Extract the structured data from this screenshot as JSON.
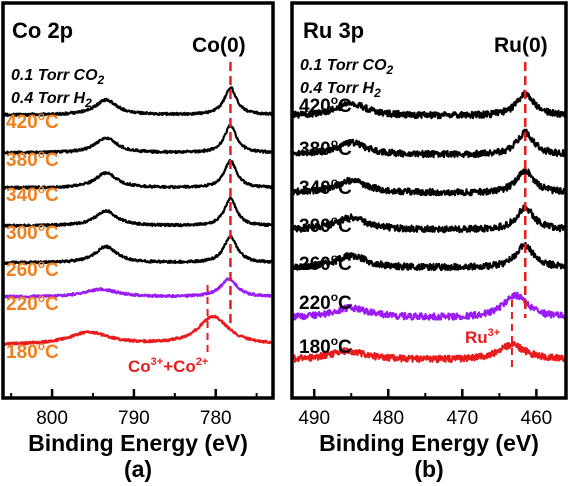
{
  "colors": {
    "frame": "#000000",
    "temp_label": "#f07f1e",
    "co0_line": "#e81c1c",
    "trace_black": "#000000",
    "trace_purple": "#9b1cf2",
    "trace_red": "#e81c1c"
  },
  "chart_data": [
    {
      "type": "line",
      "panel_label": "(a)",
      "title": "Co 2p",
      "xlabel": "Binding Energy (eV)",
      "ylabel": "",
      "xlim": [
        806,
        773
      ],
      "x_reversed": true,
      "xticks": [
        800,
        790,
        780
      ],
      "gas_conditions": [
        "0.1 Torr CO",
        "0.4 Torr H"
      ],
      "gas_subscripts": [
        "2",
        "2"
      ],
      "reference_line": {
        "label": "Co(0)",
        "x": 778.2
      },
      "secondary_line": {
        "label": "Co3+ + Co2+",
        "label_main": "Co",
        "sup1": "3+",
        "plus": "+Co",
        "sup2": "2+",
        "x": 781
      },
      "series": [
        {
          "name": "420oC",
          "temp": "420",
          "unit_sup": "o",
          "unit": "C",
          "color": "#000000",
          "peaks": [
            {
              "center": 793.4,
              "height": 0.55,
              "width": 1.6
            },
            {
              "center": 778.2,
              "height": 1.0,
              "width": 0.9
            }
          ]
        },
        {
          "name": "380oC",
          "temp": "380",
          "unit_sup": "o",
          "unit": "C",
          "color": "#000000",
          "peaks": [
            {
              "center": 793.4,
              "height": 0.55,
              "width": 1.6
            },
            {
              "center": 778.2,
              "height": 1.0,
              "width": 0.9
            }
          ]
        },
        {
          "name": "340oC",
          "temp": "340",
          "unit_sup": "o",
          "unit": "C",
          "color": "#000000",
          "peaks": [
            {
              "center": 793.4,
              "height": 0.55,
              "width": 1.6
            },
            {
              "center": 778.2,
              "height": 1.0,
              "width": 0.9
            }
          ]
        },
        {
          "name": "300oC",
          "temp": "300",
          "unit_sup": "o",
          "unit": "C",
          "color": "#000000",
          "peaks": [
            {
              "center": 793.4,
              "height": 0.55,
              "width": 1.6
            },
            {
              "center": 778.2,
              "height": 1.0,
              "width": 0.9
            }
          ]
        },
        {
          "name": "260oC",
          "temp": "260",
          "unit_sup": "o",
          "unit": "C",
          "color": "#000000",
          "peaks": [
            {
              "center": 793.4,
              "height": 0.6,
              "width": 1.6
            },
            {
              "center": 778.2,
              "height": 0.95,
              "width": 1.0
            }
          ]
        },
        {
          "name": "220oC",
          "temp": "220",
          "unit_sup": "o",
          "unit": "C",
          "color": "#9b1cf2",
          "peaks": [
            {
              "center": 794.0,
              "height": 0.25,
              "width": 2.5
            },
            {
              "center": 778.4,
              "height": 0.6,
              "width": 1.2
            }
          ]
        },
        {
          "name": "180oC",
          "temp": "180",
          "unit_sup": "o",
          "unit": "C",
          "color": "#e81c1c",
          "peaks": [
            {
              "center": 795.5,
              "height": 0.35,
              "width": 3.0
            },
            {
              "center": 780.3,
              "height": 0.8,
              "width": 2.2
            }
          ]
        }
      ]
    },
    {
      "type": "line",
      "panel_label": "(b)",
      "title": "Ru 3p",
      "xlabel": "Binding Energy (eV)",
      "ylabel": "",
      "xlim": [
        493,
        456
      ],
      "x_reversed": true,
      "xticks": [
        490,
        480,
        470,
        460
      ],
      "gas_conditions": [
        "0.1 Torr CO",
        "0.4 Torr H"
      ],
      "gas_subscripts": [
        "2",
        "2"
      ],
      "reference_line": {
        "label": "Ru(0)",
        "x": 461.5
      },
      "secondary_line": {
        "label": "Ru3+",
        "label_main": "Ru",
        "sup1": "3+",
        "x": 463.3
      },
      "series": [
        {
          "name": "420oC",
          "temp": "420",
          "unit_sup": "o",
          "unit": "C",
          "color": "#000000",
          "peaks": [
            {
              "center": 485.0,
              "height": 0.25,
              "width": 2.5
            },
            {
              "center": 461.5,
              "height": 0.45,
              "width": 1.4
            }
          ]
        },
        {
          "name": "380oC",
          "temp": "380",
          "unit_sup": "o",
          "unit": "C",
          "color": "#000000",
          "peaks": [
            {
              "center": 485.0,
              "height": 0.25,
              "width": 2.5
            },
            {
              "center": 461.5,
              "height": 0.45,
              "width": 1.4
            }
          ]
        },
        {
          "name": "340oC",
          "temp": "340",
          "unit_sup": "o",
          "unit": "C",
          "color": "#000000",
          "peaks": [
            {
              "center": 485.0,
              "height": 0.25,
              "width": 2.5
            },
            {
              "center": 461.5,
              "height": 0.45,
              "width": 1.4
            }
          ]
        },
        {
          "name": "300oC",
          "temp": "300",
          "unit_sup": "o",
          "unit": "C",
          "color": "#000000",
          "peaks": [
            {
              "center": 485.0,
              "height": 0.25,
              "width": 2.5
            },
            {
              "center": 461.5,
              "height": 0.45,
              "width": 1.4
            }
          ]
        },
        {
          "name": "260oC",
          "temp": "260",
          "unit_sup": "o",
          "unit": "C",
          "color": "#000000",
          "peaks": [
            {
              "center": 485.0,
              "height": 0.25,
              "width": 2.5
            },
            {
              "center": 461.6,
              "height": 0.45,
              "width": 1.5
            }
          ]
        },
        {
          "name": "220oC",
          "temp": "220",
          "unit_sup": "o",
          "unit": "C",
          "color": "#9b1cf2",
          "peaks": [
            {
              "center": 485.0,
              "height": 0.2,
              "width": 3.0
            },
            {
              "center": 462.8,
              "height": 0.45,
              "width": 2.0
            }
          ]
        },
        {
          "name": "180oC",
          "temp": "180",
          "unit_sup": "o",
          "unit": "C",
          "color": "#e81c1c",
          "peaks": [
            {
              "center": 485.5,
              "height": 0.18,
              "width": 3.0
            },
            {
              "center": 463.3,
              "height": 0.3,
              "width": 2.2
            }
          ]
        }
      ]
    }
  ]
}
